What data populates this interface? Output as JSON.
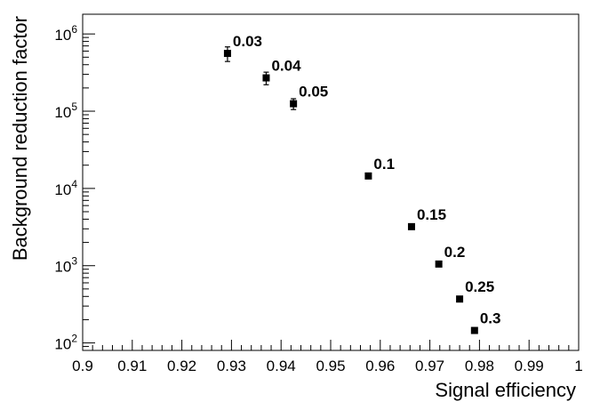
{
  "chart_data": {
    "type": "scatter",
    "title": "",
    "xlabel": "Signal efficiency",
    "ylabel": "Background reduction factor",
    "xlim": [
      0.9,
      1.0
    ],
    "ylim": [
      80,
      1800000
    ],
    "y_scale": "log",
    "grid": false,
    "x_ticks": [
      {
        "value": 0.9,
        "label": "0.9"
      },
      {
        "value": 0.91,
        "label": "0.91"
      },
      {
        "value": 0.92,
        "label": "0.92"
      },
      {
        "value": 0.93,
        "label": "0.93"
      },
      {
        "value": 0.94,
        "label": "0.94"
      },
      {
        "value": 0.95,
        "label": "0.95"
      },
      {
        "value": 0.96,
        "label": "0.96"
      },
      {
        "value": 0.97,
        "label": "0.97"
      },
      {
        "value": 0.98,
        "label": "0.98"
      },
      {
        "value": 0.99,
        "label": "0.99"
      },
      {
        "value": 1.0,
        "label": "1"
      }
    ],
    "y_ticks": [
      {
        "value": 100,
        "base": "10",
        "exp": "2"
      },
      {
        "value": 1000,
        "base": "10",
        "exp": "3"
      },
      {
        "value": 10000,
        "base": "10",
        "exp": "4"
      },
      {
        "value": 100000,
        "base": "10",
        "exp": "5"
      },
      {
        "value": 1000000,
        "base": "10",
        "exp": "6"
      }
    ],
    "points": [
      {
        "x": 0.9292,
        "y": 560000,
        "yerr": 120000,
        "label": "0.03"
      },
      {
        "x": 0.937,
        "y": 270000,
        "yerr": 50000,
        "label": "0.04"
      },
      {
        "x": 0.9425,
        "y": 125000,
        "yerr": 20000,
        "label": "0.05"
      },
      {
        "x": 0.9576,
        "y": 14500,
        "yerr": 0,
        "label": "0.1"
      },
      {
        "x": 0.9663,
        "y": 3200,
        "yerr": 0,
        "label": "0.15"
      },
      {
        "x": 0.9718,
        "y": 1050,
        "yerr": 0,
        "label": "0.2"
      },
      {
        "x": 0.976,
        "y": 370,
        "yerr": 0,
        "label": "0.25"
      },
      {
        "x": 0.979,
        "y": 145,
        "yerr": 0,
        "label": "0.3"
      }
    ]
  }
}
